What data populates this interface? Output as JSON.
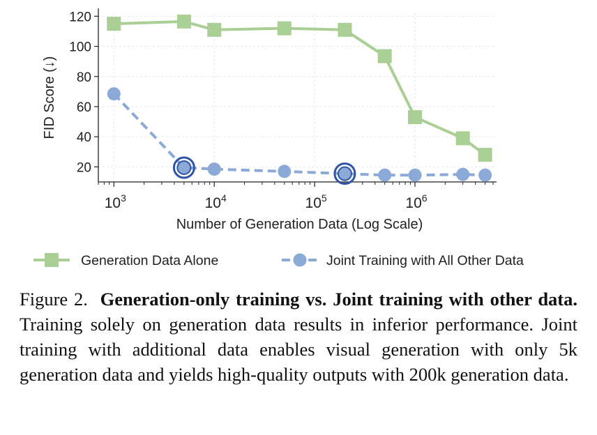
{
  "chart_data": {
    "type": "line",
    "xscale": "log",
    "xlabel": "Number of Generation Data (Log Scale)",
    "ylabel": "FID Score (↓)",
    "xlim": [
      700,
      6500000
    ],
    "ylim": [
      10,
      122
    ],
    "yticks": [
      20,
      40,
      60,
      80,
      100,
      120
    ],
    "xticks": [
      {
        "value": 1000,
        "base": "10",
        "exp": "3"
      },
      {
        "value": 10000,
        "base": "10",
        "exp": "4"
      },
      {
        "value": 100000,
        "base": "10",
        "exp": "5"
      },
      {
        "value": 1000000,
        "base": "10",
        "exp": "6"
      }
    ],
    "grid": true,
    "legend_position": "bottom",
    "series": [
      {
        "name": "Generation Data Alone",
        "marker": "square",
        "line_style": "solid",
        "color": "#a9cf94",
        "x": [
          1000,
          5000,
          10000,
          50000,
          200000,
          500000,
          1000000,
          3000000,
          5000000
        ],
        "y": [
          115,
          116.5,
          111,
          112,
          111,
          93.5,
          53,
          39,
          28
        ]
      },
      {
        "name": "Joint Training with All Other Data",
        "marker": "circle",
        "line_style": "dashed",
        "color": "#8caad8",
        "x": [
          1000,
          5000,
          10000,
          50000,
          200000,
          500000,
          1000000,
          3000000,
          5000000
        ],
        "y": [
          68.5,
          19.5,
          18.5,
          17,
          15.5,
          14.5,
          14.5,
          15,
          14.5
        ],
        "highlighted_x": [
          5000,
          200000
        ]
      }
    ],
    "highlight_color": "#2e54a6"
  },
  "caption": {
    "label": "Figure 2.",
    "bold_text": "Generation-only training vs.  Joint training with other data.",
    "text": "Training solely on generation data results in inferior performance.  Joint training with additional data enables visual generation with only 5k generation data and yields high-quality outputs with 200k generation data."
  }
}
